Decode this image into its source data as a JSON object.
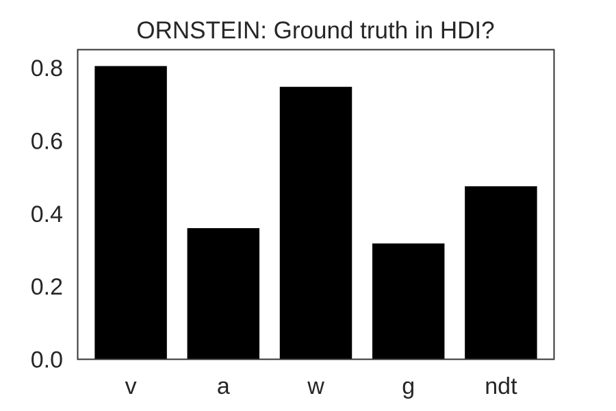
{
  "chart_data": {
    "type": "bar",
    "title": "ORNSTEIN: Ground truth in HDI?",
    "xlabel": "",
    "ylabel": "",
    "categories": [
      "v",
      "a",
      "w",
      "g",
      "ndt"
    ],
    "values": [
      0.805,
      0.36,
      0.748,
      0.318,
      0.475
    ],
    "ylim": [
      0,
      0.85
    ],
    "yticks": [
      0.0,
      0.2,
      0.4,
      0.6,
      0.8
    ],
    "ytick_labels": [
      "0.0",
      "0.2",
      "0.4",
      "0.6",
      "0.8"
    ],
    "grid": false,
    "bar_color": "#000000",
    "frame_color": "#333333",
    "text_color": "#262626"
  }
}
